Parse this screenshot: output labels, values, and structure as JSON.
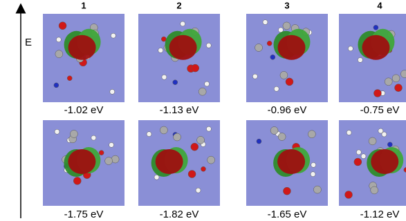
{
  "axis_label": "E",
  "columns": [
    "1",
    "2",
    "3",
    "4"
  ],
  "top_row": [
    "-1.02 eV",
    "-1.13 eV",
    "-0.96 eV",
    "-0.75 eV"
  ],
  "bottom_row": [
    "-1.75 eV",
    "-1.82 eV",
    "-1.65 eV",
    "-1.12 eV"
  ]
}
